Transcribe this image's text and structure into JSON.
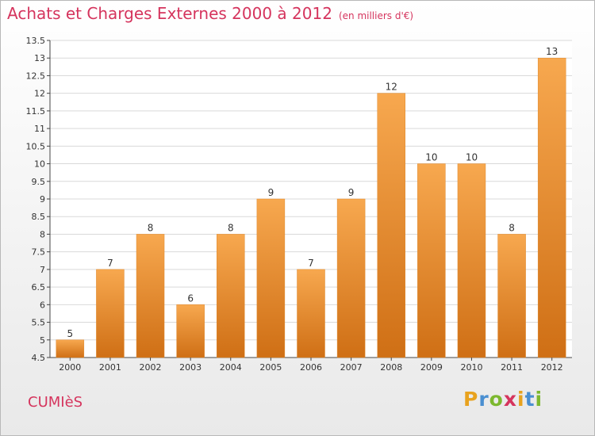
{
  "header": {
    "title": "Achats et Charges Externes 2000 à 2012",
    "unit": "(en milliers d'€)"
  },
  "footer": {
    "commune": "CUMIèS",
    "brand": [
      "P",
      "r",
      "o",
      "x",
      "i",
      "t",
      "i"
    ],
    "brand_colors": [
      "#e8a21e",
      "#4a8fd1",
      "#7cb82f",
      "#d5345d",
      "#e8a21e",
      "#4a8fd1",
      "#7cb82f"
    ]
  },
  "colors": {
    "bar_top": "#f7a84f",
    "bar_bottom": "#cf6f15",
    "grid": "#d9d9d9",
    "axis": "#444444"
  },
  "chart_data": {
    "type": "bar",
    "title": "Achats et Charges Externes 2000 à 2012",
    "subtitle": "(en milliers d'€)",
    "categories": [
      "2000",
      "2001",
      "2002",
      "2003",
      "2004",
      "2005",
      "2006",
      "2007",
      "2008",
      "2009",
      "2010",
      "2011",
      "2012"
    ],
    "values": [
      5,
      7,
      8,
      6,
      8,
      9,
      7,
      9,
      12,
      10,
      10,
      8,
      13
    ],
    "ylim": [
      4.5,
      13.5
    ],
    "yticks": [
      "4.5",
      "5",
      "5.5",
      "6",
      "6.5",
      "7",
      "7.5",
      "8",
      "8.5",
      "9",
      "9.5",
      "10",
      "10.5",
      "11",
      "11.5",
      "12",
      "12.5",
      "13",
      "13.5"
    ],
    "grid": true,
    "xlabel": "",
    "ylabel": ""
  }
}
